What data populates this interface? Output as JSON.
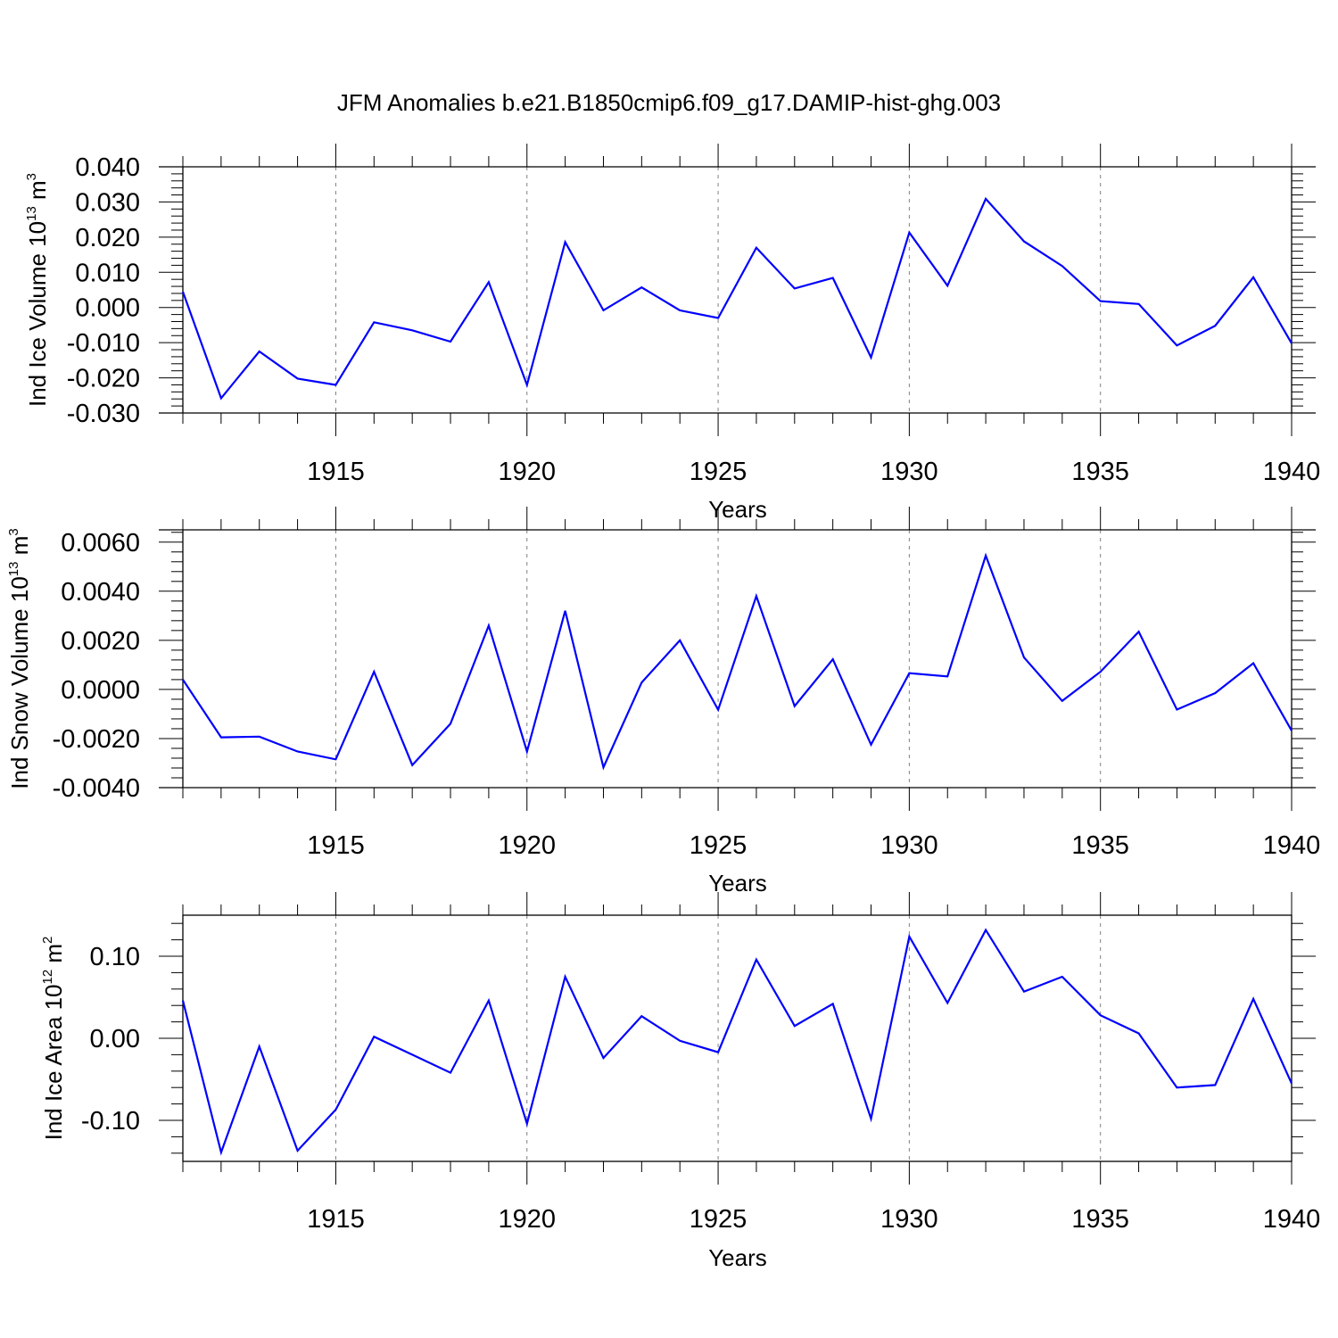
{
  "figure": {
    "title": "JFM Anomalies b.e21.B1850cmip6.f09_g17.DAMIP-hist-ghg.003",
    "line_color": "#0000ff"
  },
  "chart_data": [
    {
      "type": "line",
      "ylabel": {
        "text": "Ind Ice Volume 10",
        "exponent": "13",
        "unit": " m",
        "unit_exponent": "3"
      },
      "xlabel": "Years",
      "xlim": [
        1911,
        1940
      ],
      "ylim": [
        -0.03,
        0.04
      ],
      "yticks": [
        -0.03,
        -0.02,
        -0.01,
        0.0,
        0.01,
        0.02,
        0.03,
        0.04
      ],
      "ytick_labels": [
        "-0.030",
        "-0.020",
        "-0.010",
        "0.000",
        "0.010",
        "0.020",
        "0.030",
        "0.040"
      ],
      "xticks": [
        1915,
        1920,
        1925,
        1930,
        1935,
        1940
      ],
      "xtick_labels": [
        "1915",
        "1920",
        "1925",
        "1930",
        "1935",
        "1940"
      ],
      "grid": "dashed vertical at labeled years",
      "x": [
        1911,
        1912,
        1913,
        1914,
        1915,
        1916,
        1917,
        1918,
        1919,
        1920,
        1921,
        1922,
        1923,
        1924,
        1925,
        1926,
        1927,
        1928,
        1929,
        1930,
        1931,
        1932,
        1933,
        1934,
        1935,
        1936,
        1937,
        1938,
        1939,
        1940
      ],
      "values": [
        0.0045,
        -0.0258,
        -0.0125,
        -0.0202,
        -0.022,
        -0.0042,
        -0.0065,
        -0.0097,
        0.0072,
        -0.022,
        0.0186,
        -0.0008,
        0.0057,
        -0.0008,
        -0.003,
        0.017,
        0.0054,
        0.0084,
        -0.0142,
        0.0213,
        0.0062,
        0.0309,
        0.0188,
        0.0118,
        0.0018,
        0.001,
        -0.0108,
        -0.0052,
        0.0086,
        -0.0102
      ]
    },
    {
      "type": "line",
      "ylabel": {
        "text": "Ind Snow Volume 10",
        "exponent": "13",
        "unit": " m",
        "unit_exponent": "3"
      },
      "xlabel": "Years",
      "xlim": [
        1911,
        1940
      ],
      "ylim": [
        -0.004,
        0.0065
      ],
      "yticks": [
        -0.004,
        -0.002,
        0.0,
        0.002,
        0.004,
        0.006
      ],
      "ytick_labels": [
        "-0.0040",
        "-0.0020",
        "0.0000",
        "0.0020",
        "0.0040",
        "0.0060"
      ],
      "xticks": [
        1915,
        1920,
        1925,
        1930,
        1935,
        1940
      ],
      "xtick_labels": [
        "1915",
        "1920",
        "1925",
        "1930",
        "1935",
        "1940"
      ],
      "grid": "dashed vertical at labeled years",
      "x": [
        1911,
        1912,
        1913,
        1914,
        1915,
        1916,
        1917,
        1918,
        1919,
        1920,
        1921,
        1922,
        1923,
        1924,
        1925,
        1926,
        1927,
        1928,
        1929,
        1930,
        1931,
        1932,
        1933,
        1934,
        1935,
        1936,
        1937,
        1938,
        1939,
        1940
      ],
      "values": [
        0.0004,
        -0.00195,
        -0.00192,
        -0.00253,
        -0.00285,
        0.00072,
        -0.00308,
        -0.0014,
        0.0026,
        -0.00253,
        0.0032,
        -0.00317,
        0.00028,
        0.002,
        -0.00083,
        0.0038,
        -0.00068,
        0.00123,
        -0.00225,
        0.00066,
        0.00053,
        0.00545,
        0.0013,
        -0.00047,
        0.00072,
        0.00235,
        -0.00082,
        -0.00015,
        0.00107,
        -0.00168
      ]
    },
    {
      "type": "line",
      "ylabel": {
        "text": "Ind Ice Area 10",
        "exponent": "12",
        "unit": " m",
        "unit_exponent": "2"
      },
      "xlabel": "Years",
      "xlim": [
        1911,
        1940
      ],
      "ylim": [
        -0.15,
        0.15
      ],
      "yticks": [
        -0.1,
        0.0,
        0.1
      ],
      "ytick_labels": [
        "-0.10",
        "0.00",
        "0.10"
      ],
      "xticks": [
        1915,
        1920,
        1925,
        1930,
        1935,
        1940
      ],
      "xtick_labels": [
        "1915",
        "1920",
        "1925",
        "1930",
        "1935",
        "1940"
      ],
      "grid": "dashed vertical at labeled years",
      "x": [
        1911,
        1912,
        1913,
        1914,
        1915,
        1916,
        1917,
        1918,
        1919,
        1920,
        1921,
        1922,
        1923,
        1924,
        1925,
        1926,
        1927,
        1928,
        1929,
        1930,
        1931,
        1932,
        1933,
        1934,
        1935,
        1936,
        1937,
        1938,
        1939,
        1940
      ],
      "values": [
        0.046,
        -0.139,
        -0.01,
        -0.137,
        -0.087,
        0.002,
        -0.02,
        -0.042,
        0.046,
        -0.104,
        0.075,
        -0.024,
        0.027,
        -0.003,
        -0.017,
        0.096,
        0.015,
        0.042,
        -0.098,
        0.124,
        0.043,
        0.132,
        0.057,
        0.075,
        0.028,
        0.006,
        -0.06,
        -0.057,
        0.048,
        -0.055
      ]
    }
  ]
}
